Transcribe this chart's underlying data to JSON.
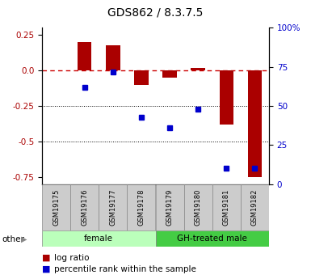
{
  "title": "GDS862 / 8.3.7.5",
  "samples": [
    "GSM19175",
    "GSM19176",
    "GSM19177",
    "GSM19178",
    "GSM19179",
    "GSM19180",
    "GSM19181",
    "GSM19182"
  ],
  "log_ratio": [
    0.0,
    0.2,
    0.18,
    -0.1,
    -0.05,
    0.02,
    -0.38,
    -0.75
  ],
  "percentile_rank": [
    null,
    62,
    72,
    43,
    36,
    48,
    10,
    10
  ],
  "groups": [
    {
      "label": "female",
      "start": 0,
      "end": 3,
      "color": "#bbffbb"
    },
    {
      "label": "GH-treated male",
      "start": 4,
      "end": 7,
      "color": "#44cc44"
    }
  ],
  "ylim_left": [
    -0.8,
    0.3
  ],
  "ylim_right": [
    0,
    100
  ],
  "yticks_left": [
    0.25,
    0.0,
    -0.25,
    -0.5,
    -0.75
  ],
  "yticks_right": [
    100,
    75,
    50,
    25,
    0
  ],
  "bar_color": "#aa0000",
  "dot_color": "#0000cc",
  "zero_line_color": "#cc0000",
  "background_color": "#ffffff",
  "title_fontsize": 10,
  "tick_fontsize": 7.5,
  "legend_fontsize": 7.5,
  "bar_width": 0.5
}
